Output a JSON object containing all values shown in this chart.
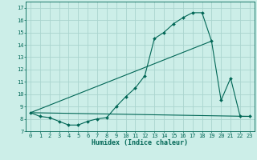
{
  "xlabel": "Humidex (Indice chaleur)",
  "background_color": "#cceee8",
  "grid_color": "#aad4ce",
  "line_color": "#006655",
  "x_ticks": [
    0,
    1,
    2,
    3,
    4,
    5,
    6,
    7,
    8,
    9,
    10,
    11,
    12,
    13,
    14,
    15,
    16,
    17,
    18,
    19,
    20,
    21,
    22,
    23
  ],
  "ylim": [
    7,
    17.5
  ],
  "xlim": [
    -0.5,
    23.5
  ],
  "series1_x": [
    0,
    1,
    2,
    3,
    4,
    5,
    6,
    7,
    8,
    9,
    10,
    11,
    12,
    13,
    14,
    15,
    16,
    17,
    18,
    19,
    20,
    21,
    22,
    23
  ],
  "series1_y": [
    8.5,
    8.2,
    8.1,
    7.8,
    7.5,
    7.5,
    7.8,
    8.0,
    8.1,
    9.0,
    9.8,
    10.5,
    11.5,
    14.5,
    15.0,
    15.7,
    16.2,
    16.6,
    16.6,
    14.3,
    9.5,
    11.3,
    8.2,
    8.2
  ],
  "series2_x": [
    0,
    23
  ],
  "series2_y": [
    8.5,
    8.2
  ],
  "series3_x": [
    0,
    19
  ],
  "series3_y": [
    8.5,
    14.3
  ],
  "yticks": [
    7,
    8,
    9,
    10,
    11,
    12,
    13,
    14,
    15,
    16,
    17
  ],
  "tick_fontsize": 5.0,
  "xlabel_fontsize": 6.0
}
